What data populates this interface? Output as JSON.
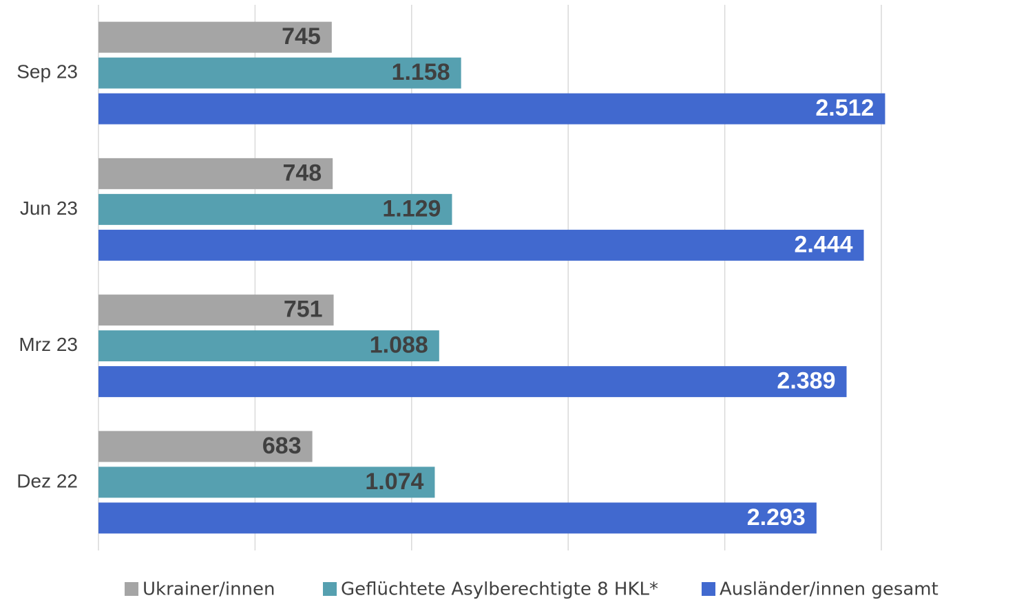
{
  "chart_data": {
    "type": "hbar",
    "categories": [
      "Sep 23",
      "Jun 23",
      "Mrz 23",
      "Dez 22"
    ],
    "series": [
      {
        "name": "Ukrainer/innen",
        "color": "#a5a5a5",
        "label_color": "#404040",
        "values": [
          745,
          748,
          751,
          683
        ],
        "value_labels": [
          "745",
          "748",
          "751",
          "683"
        ]
      },
      {
        "name": "Geflüchtete Asylberechtigte 8 HKL*",
        "color": "#56a0b0",
        "label_color": "#404040",
        "values": [
          1158,
          1129,
          1088,
          1074
        ],
        "value_labels": [
          "1.158",
          "1.129",
          "1.088",
          "1.074"
        ]
      },
      {
        "name": "Ausländer/innen gesamt",
        "color": "#4169cf",
        "label_color": "#ffffff",
        "values": [
          2512,
          2444,
          2389,
          2293
        ],
        "value_labels": [
          "2.512",
          "2.444",
          "2.389",
          "2.293"
        ]
      }
    ],
    "xlim": [
      0,
      2500
    ],
    "xticks": [
      0,
      500,
      1000,
      1500,
      2000,
      2500
    ],
    "grid": true,
    "legend": "bottom"
  }
}
